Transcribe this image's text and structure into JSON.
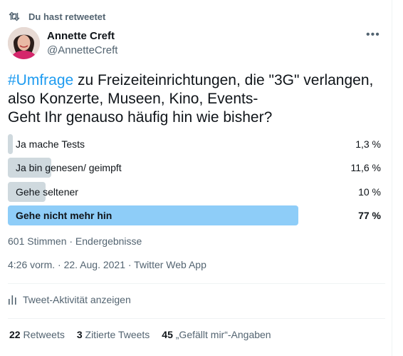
{
  "retweet_context": {
    "label": "Du hast retweetet",
    "icon": "retweet-icon"
  },
  "author": {
    "name": "Annette Creft",
    "handle": "@AnnetteCreft"
  },
  "more_icon": "more-horizontal-icon",
  "tweet": {
    "hashtag": "#Umfrage",
    "line1_rest": " zu Freizeiteinrichtungen, die \"3G\" verlangen,",
    "line2": "also Konzerte, Museen, Kino, Events-",
    "line3": "Geht Ihr genauso häufig hin wie bisher?"
  },
  "poll": {
    "options": [
      {
        "label": "Ja mache Tests",
        "percent_text": "1,3 %",
        "percent": 1.3,
        "winner": false
      },
      {
        "label": "Ja bin genesen/ geimpft",
        "percent_text": "11,6 %",
        "percent": 11.6,
        "winner": false
      },
      {
        "label": "Gehe seltener",
        "percent_text": "10 %",
        "percent": 10,
        "winner": false
      },
      {
        "label": "Gehe nicht mehr hin",
        "percent_text": "77 %",
        "percent": 77,
        "winner": true
      }
    ],
    "meta": "601 Stimmen · Endergebnisse"
  },
  "timestamp": "4:26 vorm. · 22. Aug. 2021 · Twitter Web App",
  "activity": {
    "label": "Tweet-Aktivität anzeigen",
    "icon": "analytics-icon"
  },
  "stats": {
    "retweets": {
      "count": "22",
      "label": "Retweets"
    },
    "quotes": {
      "count": "3",
      "label": "Zitierte Tweets"
    },
    "likes": {
      "count": "45",
      "label": "„Gefällt mir“-Angaben"
    }
  },
  "colors": {
    "accent": "#1d9bf0",
    "winner_bar": "#8ecdf8",
    "bar": "#cfd9de",
    "secondary_text": "#536471"
  }
}
